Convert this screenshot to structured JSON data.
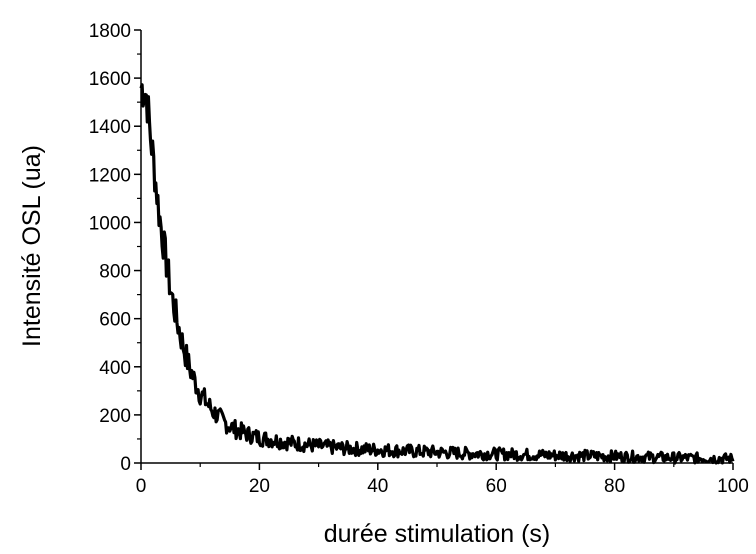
{
  "chart_data": {
    "type": "line",
    "title": "",
    "xlabel": "durée stimulation (s)",
    "ylabel": "Intensité OSL (ua)",
    "xlim": [
      0,
      100
    ],
    "ylim": [
      0,
      1800
    ],
    "xticks": [
      "0",
      "20",
      "40",
      "60",
      "80",
      "100"
    ],
    "yticks": [
      "0",
      "200",
      "400",
      "600",
      "800",
      "1000",
      "1200",
      "1400",
      "1600",
      "1800"
    ],
    "grid": false,
    "legend": "none",
    "line_color": "#000000",
    "series": [
      {
        "x": [
          0,
          0.5,
          1,
          1.5,
          2,
          3,
          4,
          5,
          6,
          7,
          8,
          9,
          10,
          12,
          14,
          16,
          18,
          20,
          25,
          30,
          35,
          40,
          45,
          50,
          55,
          60,
          65,
          70,
          75,
          80,
          85,
          90,
          95,
          100
        ],
        "y": [
          1560,
          1560,
          1520,
          1380,
          1280,
          1050,
          880,
          720,
          600,
          500,
          410,
          345,
          290,
          220,
          170,
          140,
          120,
          105,
          85,
          70,
          60,
          55,
          50,
          45,
          40,
          38,
          35,
          32,
          30,
          28,
          25,
          22,
          20,
          18
        ]
      }
    ]
  }
}
